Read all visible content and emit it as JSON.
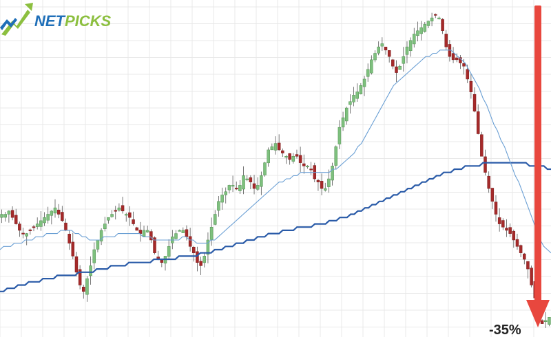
{
  "logo": {
    "text": "NETPICKS",
    "color_blue": "#1f6fb8",
    "color_green": "#8cbf3f"
  },
  "annotation": {
    "text": "-35%",
    "arrow_color": "#e8473e"
  },
  "chart_data": {
    "type": "candlestick",
    "title": "",
    "xlabel": "",
    "ylabel": "",
    "ylim": [
      0,
      100
    ],
    "grid": true,
    "colors": {
      "up": "#7ec07e",
      "down": "#a52a2a",
      "ma_fast": "#6a9fd4",
      "ma_slow": "#2a5ba8"
    },
    "closes": [
      36,
      36,
      37,
      35,
      33,
      31,
      30,
      30,
      31,
      32,
      33,
      34,
      35,
      36,
      37,
      38,
      36,
      34,
      31,
      27,
      23,
      18,
      14,
      12,
      16,
      20,
      25,
      28,
      31,
      33,
      35,
      36,
      37,
      38,
      37,
      36,
      35,
      33,
      31,
      30,
      31,
      31,
      28,
      24,
      22,
      21,
      23,
      26,
      29,
      30,
      31,
      31,
      29,
      26,
      24,
      21,
      20,
      23,
      28,
      32,
      36,
      40,
      42,
      43,
      45,
      45,
      44,
      45,
      48,
      47,
      46,
      44,
      45,
      48,
      52,
      56,
      57,
      58,
      56,
      55,
      54,
      53,
      54,
      54,
      52,
      51,
      51,
      50,
      47,
      46,
      44,
      44,
      47,
      51,
      57,
      63,
      66,
      69,
      71,
      73,
      74,
      76,
      78,
      81,
      84,
      86,
      88,
      89,
      87,
      85,
      82,
      80,
      82,
      85,
      88,
      90,
      92,
      93,
      94,
      95,
      96,
      97,
      98,
      97,
      93,
      88,
      85,
      84,
      84,
      83,
      82,
      78,
      74,
      68,
      61,
      54,
      49,
      44,
      40,
      36,
      33,
      32,
      31,
      30,
      28,
      26,
      24,
      22,
      19,
      14,
      10,
      4,
      2,
      3,
      4
    ],
    "ma_fast": [
      25,
      26,
      26,
      26,
      27,
      27,
      27,
      28,
      28,
      28,
      29,
      29,
      29,
      30,
      30,
      30,
      30,
      31,
      31,
      31,
      31,
      30,
      30,
      29,
      29,
      28,
      28,
      28,
      28,
      29,
      29,
      29,
      29,
      30,
      30,
      30,
      30,
      30,
      30,
      30,
      29,
      29,
      29,
      28,
      28,
      28,
      28,
      28,
      28,
      28,
      28,
      29,
      29,
      28,
      28,
      27,
      27,
      27,
      27,
      28,
      28,
      29,
      30,
      31,
      32,
      33,
      34,
      35,
      36,
      37,
      38,
      39,
      40,
      41,
      42,
      43,
      44,
      45,
      46,
      46,
      47,
      47,
      48,
      48,
      49,
      49,
      49,
      49,
      49,
      49,
      49,
      49,
      49,
      50,
      50,
      51,
      52,
      53,
      54,
      55,
      57,
      58,
      60,
      62,
      64,
      66,
      68,
      70,
      72,
      74,
      76,
      77,
      78,
      79,
      80,
      81,
      82,
      83,
      84,
      85,
      85,
      86,
      86,
      87,
      87,
      87,
      87,
      86,
      85,
      84,
      83,
      81,
      79,
      77,
      75,
      72,
      70,
      67,
      64,
      62,
      59,
      57,
      54,
      51,
      48,
      46,
      43,
      40,
      37,
      34,
      31,
      28,
      26,
      25,
      24
    ],
    "ma_slow": [
      12,
      12,
      13,
      13,
      13,
      14,
      14,
      14,
      15,
      15,
      15,
      15,
      16,
      16,
      16,
      16,
      17,
      17,
      17,
      17,
      17,
      17,
      18,
      18,
      18,
      18,
      18,
      19,
      19,
      19,
      19,
      20,
      20,
      20,
      20,
      20,
      21,
      21,
      21,
      21,
      21,
      21,
      21,
      22,
      22,
      22,
      22,
      22,
      22,
      22,
      23,
      23,
      23,
      23,
      23,
      23,
      24,
      24,
      24,
      24,
      25,
      25,
      25,
      26,
      26,
      26,
      27,
      27,
      27,
      28,
      28,
      28,
      29,
      29,
      29,
      30,
      30,
      30,
      30,
      31,
      31,
      31,
      31,
      32,
      32,
      32,
      32,
      32,
      33,
      33,
      33,
      33,
      34,
      34,
      34,
      35,
      35,
      35,
      36,
      36,
      37,
      37,
      38,
      38,
      39,
      39,
      40,
      40,
      41,
      41,
      42,
      42,
      43,
      43,
      44,
      44,
      45,
      45,
      46,
      46,
      47,
      47,
      48,
      48,
      49,
      49,
      49,
      50,
      50,
      50,
      51,
      51,
      51,
      51,
      51,
      52,
      52,
      52,
      52,
      52,
      52,
      52,
      52,
      52,
      52,
      52,
      52,
      52,
      51,
      51,
      51,
      51,
      51,
      50,
      50
    ]
  }
}
